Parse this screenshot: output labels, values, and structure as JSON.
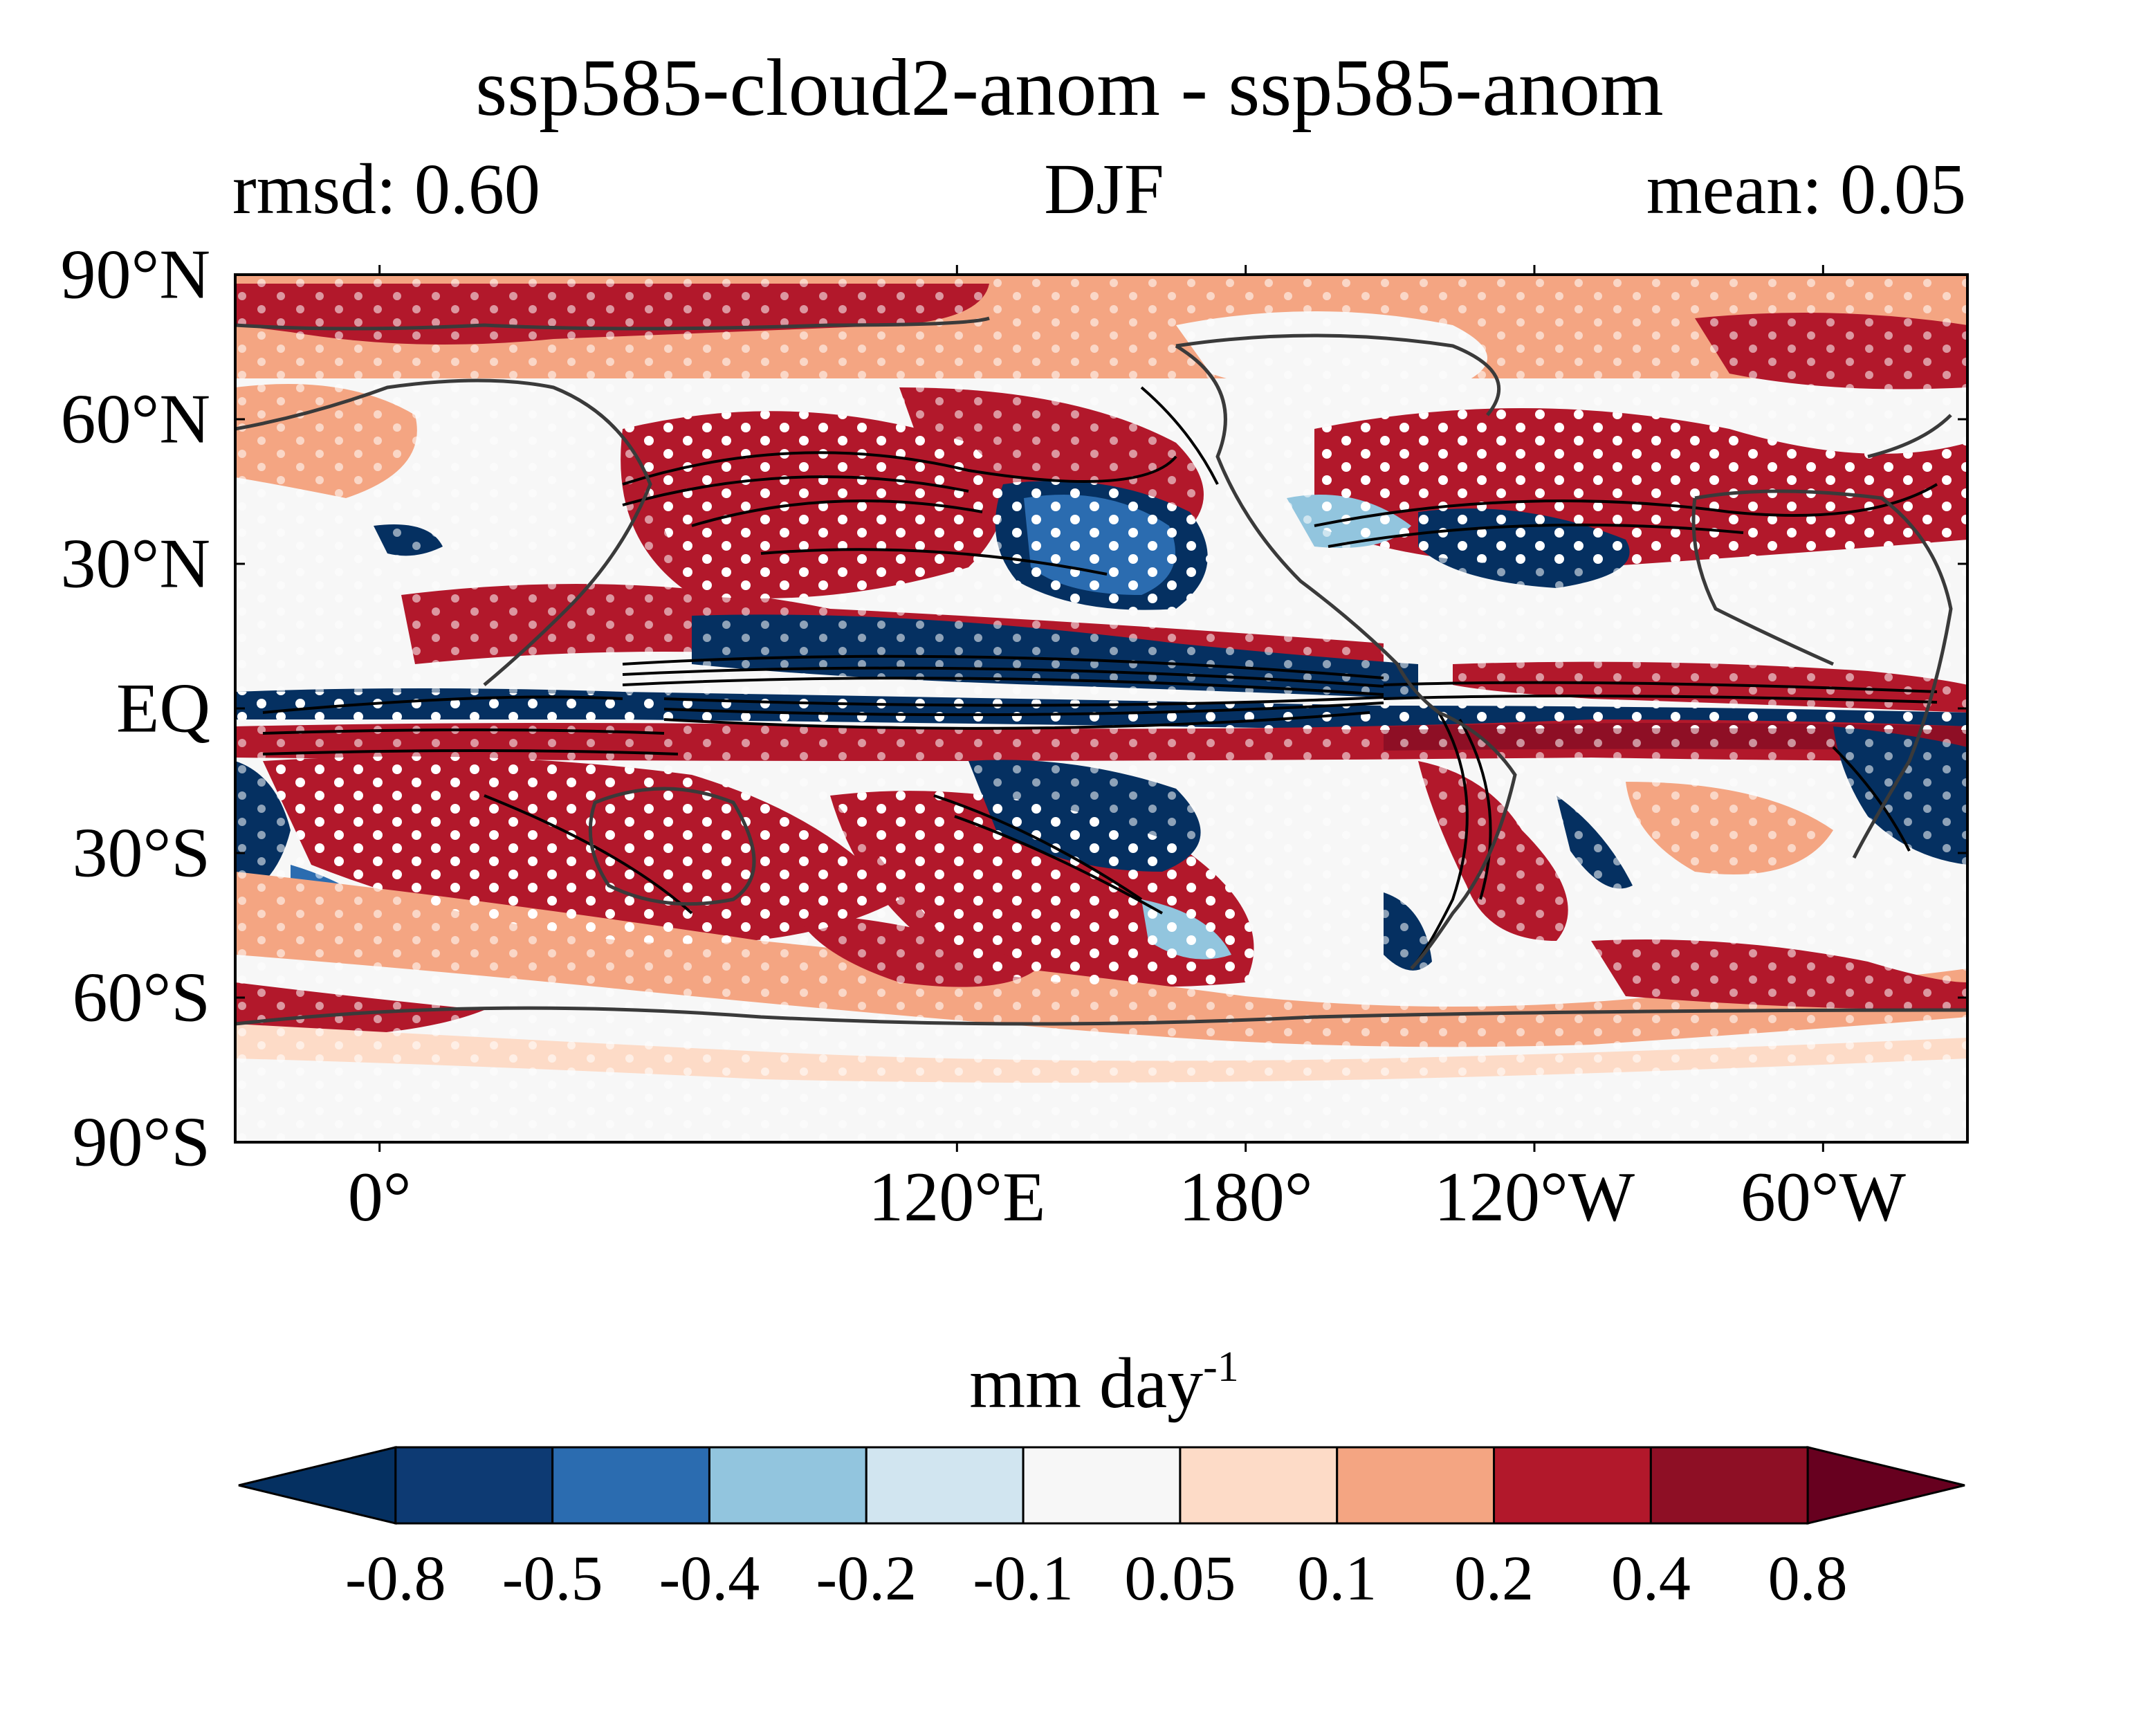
{
  "title": "ssp585-cloud2-anom - ssp585-anom",
  "subtitle_left": "rmsd: 0.60",
  "subtitle_center": "DJF",
  "subtitle_right": "mean: 0.05",
  "map": {
    "projection": "equirectangular",
    "central_longitude": 150,
    "lat_range": [
      -90,
      90
    ],
    "lat_ticks": [
      {
        "value": 90,
        "label": "90°N"
      },
      {
        "value": 60,
        "label": "60°N"
      },
      {
        "value": 30,
        "label": "30°N"
      },
      {
        "value": 0,
        "label": "EQ"
      },
      {
        "value": -30,
        "label": "30°S"
      },
      {
        "value": -60,
        "label": "60°S"
      },
      {
        "value": -90,
        "label": "90°S"
      }
    ],
    "lon_ticks": [
      {
        "value": 120,
        "label": "120°E"
      },
      {
        "value": 180,
        "label": "180°"
      },
      {
        "value": -120,
        "label": "120°W"
      },
      {
        "value": -60,
        "label": "60°W"
      },
      {
        "value": 0,
        "label": "0°"
      }
    ],
    "stippling": "white dots mark significant regions",
    "contours": "black contour lines over tropical and storm-track regions"
  },
  "colorbar": {
    "unit_label": "mm day",
    "unit_exponent": "-1",
    "extend": "both",
    "boundaries": [
      "-0.8",
      "-0.5",
      "-0.4",
      "-0.2",
      "-0.1",
      "0.05",
      "0.1",
      "0.2",
      "0.4",
      "0.8"
    ],
    "colors": [
      "#053061",
      "#0d3a73",
      "#2b6cb0",
      "#92c5de",
      "#d1e5f0",
      "#f7f7f7",
      "#fddbc7",
      "#f4a582",
      "#b2182b",
      "#8e0f25",
      "#67001f"
    ]
  }
}
